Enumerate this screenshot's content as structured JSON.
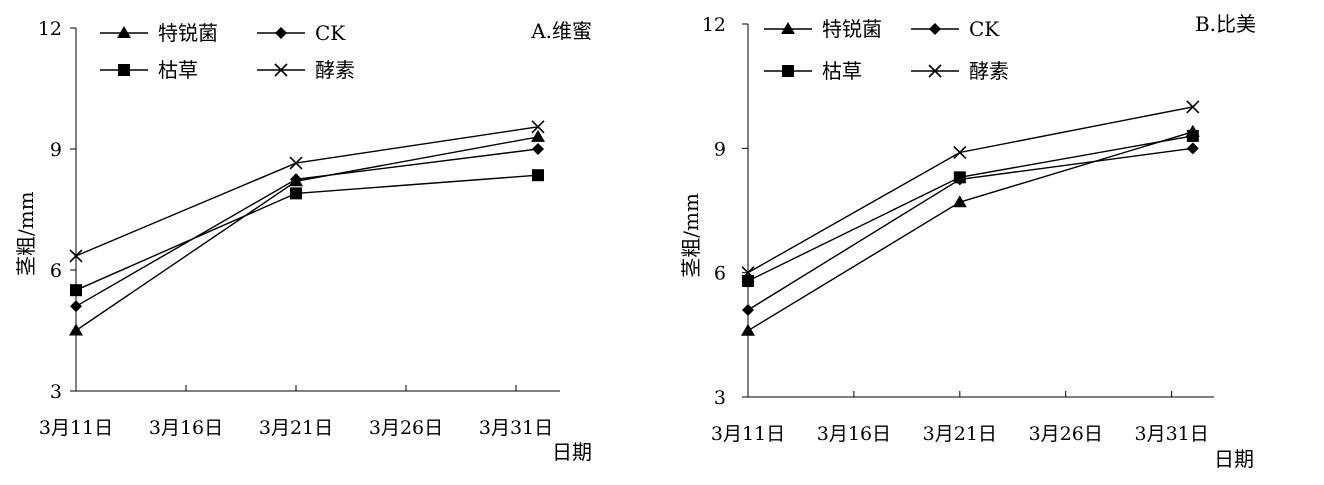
{
  "chart_data": [
    {
      "type": "line",
      "title": "A.维蜜",
      "xlabel": "日期",
      "ylabel": "茎粗/mm",
      "x_ticks": [
        "3月11日",
        "3月16日",
        "3月21日",
        "3月26日",
        "3月31日"
      ],
      "y_ticks": [
        "3",
        "6",
        "9",
        "12"
      ],
      "xlim": [
        "3月11日",
        "4月2日"
      ],
      "ylim": [
        3,
        12
      ],
      "x": [
        "3月11日",
        "3月21日",
        "4月1日"
      ],
      "series": [
        {
          "name": "特锐菌",
          "marker": "triangle",
          "values": [
            4.5,
            8.2,
            9.3
          ]
        },
        {
          "name": "CK",
          "marker": "diamond",
          "values": [
            5.1,
            8.25,
            9.0
          ]
        },
        {
          "name": "枯草",
          "marker": "square",
          "values": [
            5.5,
            7.9,
            8.35
          ]
        },
        {
          "name": "酵素",
          "marker": "x",
          "values": [
            6.35,
            8.65,
            9.55
          ]
        }
      ],
      "legend_position": "top-left",
      "grid": false
    },
    {
      "type": "line",
      "title": "B.比美",
      "xlabel": "日期",
      "ylabel": "茎粗/mm",
      "x_ticks": [
        "3月11日",
        "3月16日",
        "3月21日",
        "3月26日",
        "3月31日"
      ],
      "y_ticks": [
        "3",
        "6",
        "9",
        "12"
      ],
      "xlim": [
        "3月11日",
        "4月2日"
      ],
      "ylim": [
        3,
        12
      ],
      "x": [
        "3月11日",
        "3月21日",
        "4月1日"
      ],
      "series": [
        {
          "name": "特锐菌",
          "marker": "triangle",
          "values": [
            4.6,
            7.7,
            9.4
          ]
        },
        {
          "name": "CK",
          "marker": "diamond",
          "values": [
            5.1,
            8.25,
            9.0
          ]
        },
        {
          "name": "枯草",
          "marker": "square",
          "values": [
            5.8,
            8.3,
            9.3
          ]
        },
        {
          "name": "酵素",
          "marker": "x",
          "values": [
            6.0,
            8.9,
            10.0
          ]
        }
      ],
      "legend_position": "top-left",
      "grid": false
    }
  ]
}
